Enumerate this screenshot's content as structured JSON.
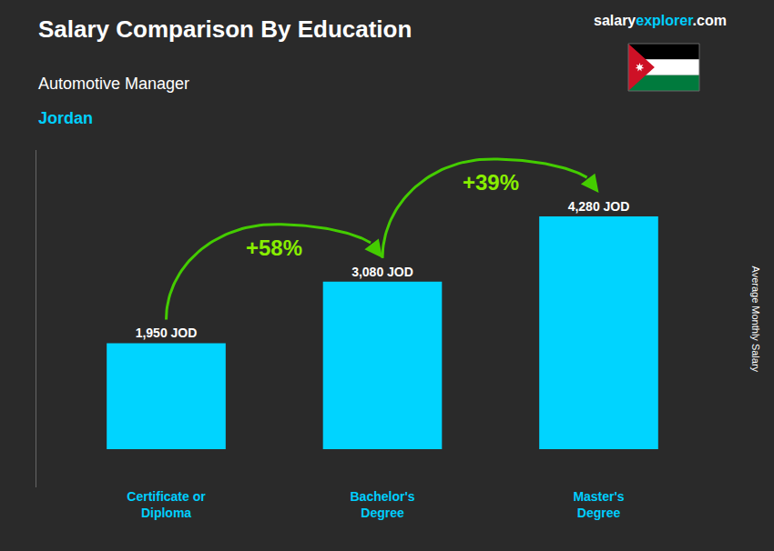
{
  "chart_data": {
    "type": "bar",
    "title": "Salary Comparison By Education",
    "subtitle": "Automotive Manager",
    "country": "Jordan",
    "watermark_salary": "salary",
    "watermark_explorer": "explorer",
    "watermark_com": ".com",
    "ylabel": "Average Monthly Salary",
    "categories": [
      "Certificate or\nDiploma",
      "Bachelor's\nDegree",
      "Master's\nDegree"
    ],
    "values": [
      1950,
      3080,
      4280
    ],
    "value_labels": [
      "1,950 JOD",
      "3,080 JOD",
      "4,280 JOD"
    ],
    "data_labels": true,
    "annotations": [
      "+58%",
      "+39%"
    ],
    "color": "#00d4ff",
    "ylim": [
      -700,
      5500
    ],
    "tick_labels": "x",
    "grid": false
  }
}
